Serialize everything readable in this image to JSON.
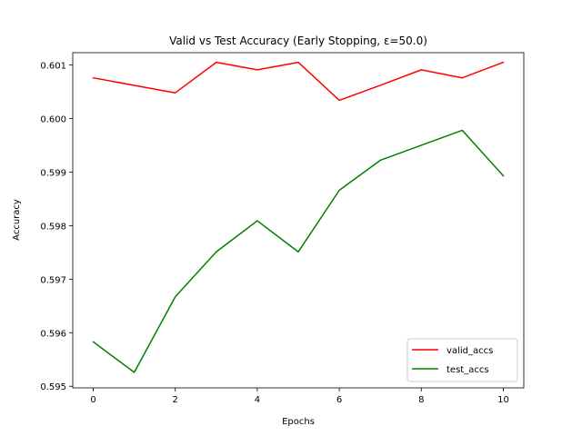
{
  "chart_data": {
    "type": "line",
    "title": "Valid vs Test Accuracy (Early Stopping, ε=50.0)",
    "xlabel": "Epochs",
    "ylabel": "Accuracy",
    "x": [
      0,
      1,
      2,
      3,
      4,
      5,
      6,
      7,
      8,
      9,
      10
    ],
    "xlim": [
      -0.5,
      10.5
    ],
    "ylim": [
      0.59497,
      0.60123
    ],
    "xticks": [
      0,
      2,
      4,
      6,
      8,
      10
    ],
    "xtick_labels": [
      "0",
      "2",
      "4",
      "6",
      "8",
      "10"
    ],
    "yticks": [
      0.595,
      0.596,
      0.597,
      0.598,
      0.599,
      0.6,
      0.601
    ],
    "ytick_labels": [
      "0.595",
      "0.596",
      "0.597",
      "0.598",
      "0.599",
      "0.600",
      "0.601"
    ],
    "grid": false,
    "legend_position": "lower-right",
    "series": [
      {
        "name": "valid_accs",
        "color": "#ff0000",
        "values": [
          0.60076,
          0.60062,
          0.60048,
          0.60105,
          0.60091,
          0.60105,
          0.60034,
          0.60062,
          0.60091,
          0.60076,
          0.60105
        ]
      },
      {
        "name": "test_accs",
        "color": "#008000",
        "values": [
          0.59583,
          0.59526,
          0.59667,
          0.59751,
          0.59809,
          0.59751,
          0.59866,
          0.59922,
          0.5995,
          0.59978,
          0.59893
        ]
      }
    ]
  }
}
